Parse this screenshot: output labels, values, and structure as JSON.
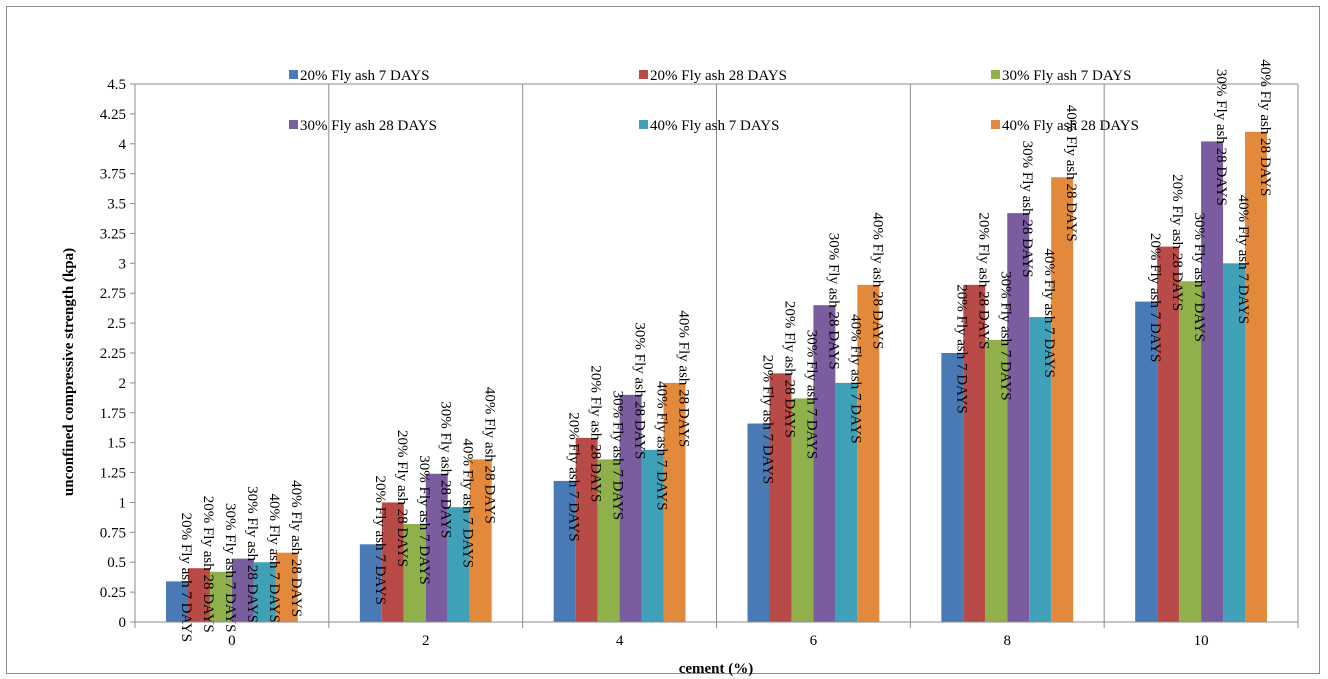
{
  "chart_data": {
    "type": "bar",
    "title": "",
    "xlabel": "cement (%)",
    "ylabel": "unconfined compressive strength (kpa)",
    "categories": [
      "0",
      "2",
      "4",
      "6",
      "8",
      "10"
    ],
    "ylim": [
      0,
      4.5
    ],
    "ytick_step": 0.25,
    "y_ticks": [
      "0",
      "0.25",
      "0.5",
      "0.75",
      "1",
      "1.25",
      "1.5",
      "1.75",
      "2",
      "2.25",
      "2.5",
      "2.75",
      "3",
      "3.25",
      "3.5",
      "3.75",
      "4",
      "4.25",
      "4.5"
    ],
    "grid": "vertical lines at category boundaries",
    "legend_position": "top",
    "data_labels": "series name, rotated vertical",
    "series": [
      {
        "name": "20% Fly ash 7 DAYS",
        "color": "#4a7ab5",
        "values": [
          0.34,
          0.65,
          1.18,
          1.66,
          2.25,
          2.68
        ]
      },
      {
        "name": "20% Fly ash 28 DAYS",
        "color": "#b84a47",
        "values": [
          0.45,
          1.0,
          1.54,
          2.08,
          2.82,
          3.14
        ]
      },
      {
        "name": "30% Fly ash 7 DAYS",
        "color": "#8fb04b",
        "values": [
          0.42,
          0.82,
          1.36,
          1.87,
          2.36,
          2.85
        ]
      },
      {
        "name": "30% Fly ash 28 DAYS",
        "color": "#7a5d9e",
        "values": [
          0.53,
          1.24,
          1.9,
          2.65,
          3.42,
          4.02
        ]
      },
      {
        "name": "40% Fly ash 7 DAYS",
        "color": "#3fa0b8",
        "values": [
          0.5,
          0.96,
          1.44,
          2.0,
          2.55,
          3.0
        ]
      },
      {
        "name": "40% Fly ash 28 DAYS",
        "color": "#e3893b",
        "values": [
          0.58,
          1.36,
          2.0,
          2.82,
          3.72,
          4.1
        ]
      }
    ]
  }
}
